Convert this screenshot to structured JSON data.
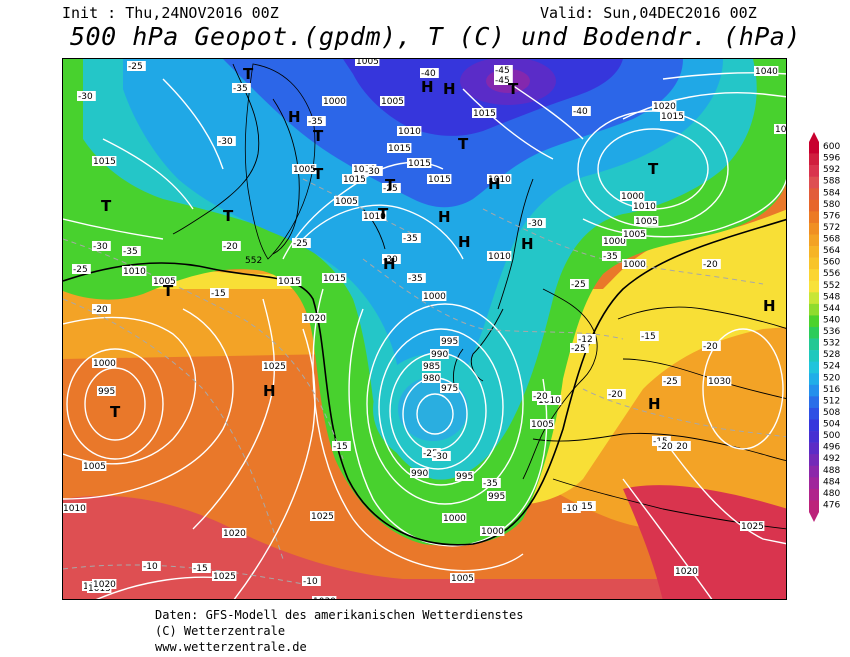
{
  "header": {
    "init": "Init : Thu,24NOV2016 00Z",
    "valid": "Valid: Sun,04DEC2016 00Z",
    "title": "500 hPa Geopot.(gpdm), T (C) und Bodendr. (hPa)"
  },
  "legend": {
    "values": [
      "600",
      "596",
      "592",
      "588",
      "584",
      "580",
      "576",
      "572",
      "568",
      "564",
      "560",
      "556",
      "552",
      "548",
      "544",
      "540",
      "536",
      "532",
      "528",
      "524",
      "520",
      "516",
      "512",
      "508",
      "504",
      "500",
      "496",
      "492",
      "488",
      "484",
      "480",
      "476"
    ],
    "colors": [
      "#c8002e",
      "#d01e3e",
      "#d9344e",
      "#de4f52",
      "#e25c3a",
      "#e7662a",
      "#ec7a24",
      "#f08f22",
      "#f3a224",
      "#f6b426",
      "#f8c42a",
      "#fbd532",
      "#f8e23a",
      "#c8e636",
      "#8fdc2e",
      "#4cd22c",
      "#2ccc5a",
      "#22c894",
      "#1ec8bd",
      "#20c4dc",
      "#20aee8",
      "#2490ec",
      "#2a6ee8",
      "#2e50e4",
      "#3636dc",
      "#4630d2",
      "#5c2cc6",
      "#742ab8",
      "#8c28aa",
      "#a0269c",
      "#b0248c",
      "#bc227a"
    ]
  },
  "map": {
    "pressure_labels": [
      "1005",
      "1000",
      "1005",
      "1010",
      "1015",
      "1010",
      "1015",
      "1020",
      "1015",
      "1040",
      "1030",
      "1015",
      "1005",
      "1010",
      "1015",
      "1000",
      "1010",
      "1005",
      "1000",
      "1005",
      "1005",
      "1010",
      "1015",
      "1015",
      "1010",
      "1015",
      "1000",
      "995",
      "990",
      "985",
      "980",
      "975",
      "1025",
      "1030",
      "1000",
      "995",
      "1005",
      "1010",
      "1015",
      "1020",
      "1025",
      "1020",
      "990",
      "995",
      "995",
      "1000",
      "1000",
      "1005",
      "1010",
      "1005",
      "1020",
      "1025",
      "1015",
      "1005",
      "1010",
      "1000",
      "1025",
      "1030",
      "1015",
      "1020"
    ],
    "temp_labels": [
      "-25",
      "-30",
      "-35",
      "-35",
      "-40",
      "-45",
      "-45",
      "-40",
      "-35",
      "-30",
      "-25",
      "-30",
      "-35",
      "-30",
      "-25",
      "-35",
      "-30",
      "-20",
      "-25",
      "-30",
      "-35",
      "-25",
      "-20",
      "-15",
      "-15",
      "-25",
      "-20",
      "-20",
      "-15",
      "-20",
      "-25",
      "-30",
      "-35",
      "-20",
      "-15",
      "-10",
      "-10",
      "-15",
      "-10",
      "-12",
      "-25",
      "-20",
      "-15",
      "-20"
    ],
    "highs": [
      "H",
      "H",
      "H",
      "H",
      "H",
      "H",
      "H",
      "H",
      "H",
      "H",
      "H"
    ],
    "lows": [
      "T",
      "T",
      "T",
      "T",
      "T",
      "T",
      "T",
      "T",
      "T",
      "T",
      "T",
      "T"
    ]
  },
  "footer": {
    "line1": "Daten: GFS-Modell des amerikanischen Wetterdienstes",
    "line2": "(C) Wetterzentrale",
    "line3": "www.wetterzentrale.de"
  }
}
